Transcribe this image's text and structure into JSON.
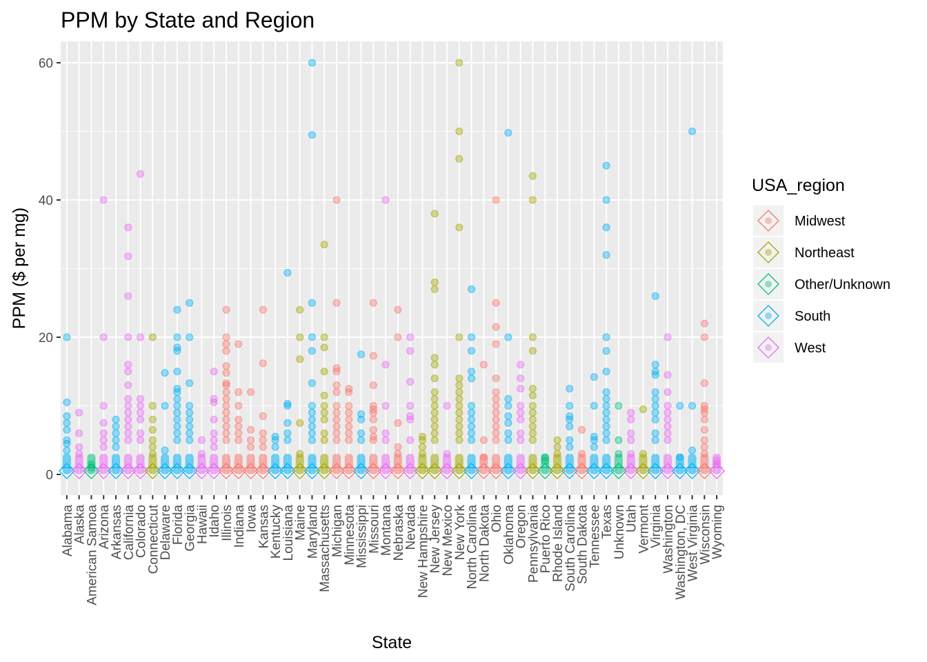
{
  "chart_data": {
    "type": "scatter",
    "title": "PPM by State and Region",
    "xlabel": "State",
    "ylabel": "PPM ($ per mg)",
    "ylim": [
      -3,
      63
    ],
    "y_ticks": [
      0,
      20,
      40,
      60
    ],
    "grid": true,
    "legend_position": "right",
    "legend": {
      "title": "USA_region",
      "entries": [
        "Midwest",
        "Northeast",
        "Other/Unknown",
        "South",
        "West"
      ]
    },
    "colors": {
      "Midwest": "#F8766D",
      "Northeast": "#A3A500",
      "Other/Unknown": "#00BF7D",
      "South": "#00B0F6",
      "West": "#E76BF3",
      "panel": "#EBEBEB",
      "grid": "#FFFFFF"
    },
    "categories": [
      {
        "state": "Alabama",
        "region": "South",
        "outliers": [
          20,
          10.5,
          8.5,
          7.5,
          6.5,
          5,
          4.5,
          3.5
        ]
      },
      {
        "state": "Alaska",
        "region": "West",
        "outliers": [
          9,
          6,
          4,
          3
        ]
      },
      {
        "state": "American Samoa",
        "region": "Other/Unknown",
        "outliers": [
          1.5,
          1
        ]
      },
      {
        "state": "Arizona",
        "region": "West",
        "outliers": [
          40,
          20,
          10,
          7.5,
          6,
          5,
          4
        ]
      },
      {
        "state": "Arkansas",
        "region": "South",
        "outliers": [
          8,
          7,
          6,
          5,
          4
        ]
      },
      {
        "state": "California",
        "region": "West",
        "outliers": [
          36,
          31.8,
          26,
          20,
          16,
          15,
          13,
          11,
          10,
          9,
          8,
          7,
          6,
          5
        ]
      },
      {
        "state": "Colorado",
        "region": "West",
        "outliers": [
          43.8,
          20,
          11,
          10,
          9,
          8,
          6,
          5
        ]
      },
      {
        "state": "Connecticut",
        "region": "Northeast",
        "outliers": [
          20,
          10,
          8,
          6.5,
          5,
          4,
          3
        ]
      },
      {
        "state": "Delaware",
        "region": "South",
        "outliers": [
          14.8,
          10,
          3.5
        ]
      },
      {
        "state": "Florida",
        "region": "South",
        "outliers": [
          24,
          20,
          18.5,
          18,
          15,
          12.5,
          12,
          11,
          10,
          9,
          8,
          7,
          6,
          5
        ]
      },
      {
        "state": "Georgia",
        "region": "South",
        "outliers": [
          25,
          20,
          13.3,
          10,
          9,
          8,
          7,
          6,
          5
        ]
      },
      {
        "state": "Hawaii",
        "region": "West",
        "outliers": [
          5,
          3
        ]
      },
      {
        "state": "Idaho",
        "region": "West",
        "outliers": [
          15,
          11,
          10.5,
          8,
          6,
          5,
          4
        ]
      },
      {
        "state": "Illinois",
        "region": "Midwest",
        "outliers": [
          24,
          20,
          19,
          18,
          15.8,
          14.8,
          13.3,
          13,
          12,
          11,
          10,
          9,
          8,
          7,
          6,
          5
        ]
      },
      {
        "state": "Indiana",
        "region": "Midwest",
        "outliers": [
          19,
          12,
          10,
          8,
          7,
          6,
          5
        ]
      },
      {
        "state": "Iowa",
        "region": "Midwest",
        "outliers": [
          12,
          6.5,
          5,
          4
        ]
      },
      {
        "state": "Kansas",
        "region": "Midwest",
        "outliers": [
          24,
          16.2,
          8.5,
          6,
          5,
          4
        ]
      },
      {
        "state": "Kentucky",
        "region": "South",
        "outliers": [
          5.5,
          5,
          4
        ]
      },
      {
        "state": "Louisiana",
        "region": "South",
        "outliers": [
          29.4,
          10.3,
          10,
          7.5,
          6,
          5
        ]
      },
      {
        "state": "Maine",
        "region": "Northeast",
        "outliers": [
          24,
          20,
          16.8,
          7.5,
          3
        ]
      },
      {
        "state": "Maryland",
        "region": "South",
        "outliers": [
          60,
          49.5,
          25,
          20,
          18,
          13.3,
          10,
          9,
          8,
          7,
          6,
          5
        ]
      },
      {
        "state": "Massachusetts",
        "region": "Northeast",
        "outliers": [
          33.5,
          20,
          18.5,
          15,
          11.5,
          10,
          9,
          8,
          6,
          5
        ]
      },
      {
        "state": "Michigan",
        "region": "Midwest",
        "outliers": [
          40,
          25,
          15.5,
          15,
          13,
          12,
          10,
          9,
          8,
          7,
          6,
          5
        ]
      },
      {
        "state": "Minnesota",
        "region": "Midwest",
        "outliers": [
          12.5,
          12,
          10,
          9,
          8,
          7,
          6,
          5
        ]
      },
      {
        "state": "Mississippi",
        "region": "South",
        "outliers": [
          17.5,
          8.8,
          8,
          6,
          5
        ]
      },
      {
        "state": "Missouri",
        "region": "Midwest",
        "outliers": [
          25,
          17.3,
          13,
          10,
          9.5,
          9,
          8,
          6.5,
          5.5,
          5
        ]
      },
      {
        "state": "Montana",
        "region": "West",
        "outliers": [
          40,
          16,
          10,
          6,
          5
        ]
      },
      {
        "state": "Nebraska",
        "region": "Midwest",
        "outliers": [
          24,
          20,
          7.5,
          4,
          3
        ]
      },
      {
        "state": "Nevada",
        "region": "West",
        "outliers": [
          20,
          18,
          13.5,
          10,
          8.5,
          8,
          5
        ]
      },
      {
        "state": "New Hampshire",
        "region": "Northeast",
        "outliers": [
          5.5,
          5,
          4,
          3
        ]
      },
      {
        "state": "New Jersey",
        "region": "Northeast",
        "outliers": [
          38,
          28,
          27,
          17,
          16,
          14,
          12,
          11,
          10,
          9,
          8,
          7,
          6,
          5
        ]
      },
      {
        "state": "New Mexico",
        "region": "West",
        "outliers": [
          10,
          3
        ]
      },
      {
        "state": "New York",
        "region": "Northeast",
        "outliers": [
          60,
          50,
          46,
          36,
          20,
          14,
          13,
          12,
          11,
          10,
          9,
          8,
          7,
          6,
          5
        ]
      },
      {
        "state": "North Carolina",
        "region": "South",
        "outliers": [
          27,
          20,
          18,
          15,
          14,
          10,
          9,
          8,
          7,
          6,
          5
        ]
      },
      {
        "state": "North Dakota",
        "region": "Midwest",
        "outliers": [
          16,
          5,
          2.5
        ]
      },
      {
        "state": "Ohio",
        "region": "Midwest",
        "outliers": [
          40,
          25,
          21.5,
          19,
          14,
          12,
          11,
          10,
          9,
          8,
          7,
          6,
          5
        ]
      },
      {
        "state": "Oklahoma",
        "region": "South",
        "outliers": [
          49.8,
          20,
          11,
          10,
          8.5,
          7.5,
          6,
          5
        ]
      },
      {
        "state": "Oregon",
        "region": "West",
        "outliers": [
          16,
          14,
          12.5,
          10,
          9,
          8,
          6,
          5
        ]
      },
      {
        "state": "Pennsylvania",
        "region": "Northeast",
        "outliers": [
          43.5,
          40,
          20,
          18,
          12.5,
          11.5,
          10,
          9,
          8,
          7,
          6,
          5
        ]
      },
      {
        "state": "Puerto Rico",
        "region": "Other/Unknown",
        "outliers": [
          2.5,
          2
        ]
      },
      {
        "state": "Rhode Island",
        "region": "Northeast",
        "outliers": [
          5,
          4,
          3
        ]
      },
      {
        "state": "South Carolina",
        "region": "South",
        "outliers": [
          12.5,
          10,
          8.5,
          8,
          7,
          5,
          4
        ]
      },
      {
        "state": "South Dakota",
        "region": "Midwest",
        "outliers": [
          6.5,
          3
        ]
      },
      {
        "state": "Tennessee",
        "region": "South",
        "outliers": [
          14.2,
          10,
          5.5,
          5,
          4
        ]
      },
      {
        "state": "Texas",
        "region": "South",
        "outliers": [
          45,
          40,
          36,
          32,
          20,
          18,
          15,
          12,
          11,
          10,
          9,
          8,
          7,
          6,
          5
        ]
      },
      {
        "state": "Unknown",
        "region": "Other/Unknown",
        "outliers": [
          10,
          5,
          3
        ]
      },
      {
        "state": "Utah",
        "region": "West",
        "outliers": [
          9,
          8,
          6,
          5,
          3
        ]
      },
      {
        "state": "Vermont",
        "region": "Northeast",
        "outliers": [
          9.5,
          3
        ]
      },
      {
        "state": "Virginia",
        "region": "South",
        "outliers": [
          26,
          16,
          15,
          14.5,
          12,
          11,
          10,
          9,
          8,
          6,
          5
        ]
      },
      {
        "state": "Washington",
        "region": "West",
        "outliers": [
          20,
          14.5,
          12,
          10,
          9,
          8,
          7,
          6,
          5
        ]
      },
      {
        "state": "Washington, DC",
        "region": "South",
        "outliers": [
          10,
          2.5
        ]
      },
      {
        "state": "West Virginia",
        "region": "South",
        "outliers": [
          50,
          10,
          3.5
        ]
      },
      {
        "state": "Wisconsin",
        "region": "Midwest",
        "outliers": [
          22,
          20,
          13.3,
          10,
          9.5,
          9,
          8,
          6.5,
          5,
          4,
          3
        ]
      },
      {
        "state": "Wyoming",
        "region": "West",
        "outliers": [
          2,
          1.5
        ]
      }
    ]
  }
}
